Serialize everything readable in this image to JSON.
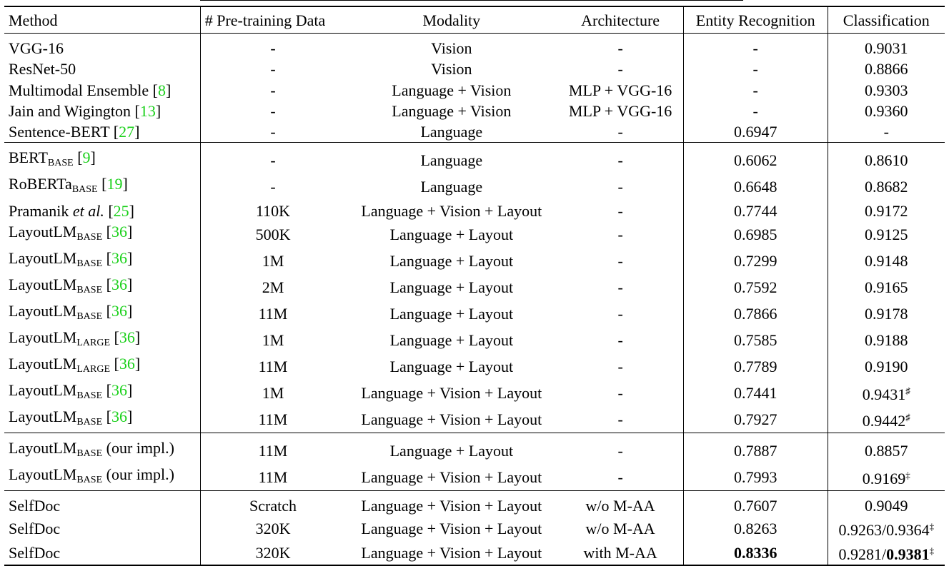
{
  "headers": [
    "Method",
    "# Pre-training Data",
    "Modality",
    "Architecture",
    "Entity Recognition",
    "Classification"
  ],
  "groups": [
    [
      {
        "m": "VGG-16",
        "ref": "",
        "data": "-",
        "mod": "Vision",
        "arch": "-",
        "er": "-",
        "cls": "0.9031"
      },
      {
        "m": "ResNet-50",
        "ref": "",
        "data": "-",
        "mod": "Vision",
        "arch": "-",
        "er": "-",
        "cls": "0.8866"
      },
      {
        "m": "Multimodal Ensemble ",
        "ref": "8",
        "data": "-",
        "mod": "Language + Vision",
        "arch": "MLP + VGG-16",
        "er": "-",
        "cls": "0.9303"
      },
      {
        "m": "Jain and Wigington ",
        "ref": "13",
        "data": "-",
        "mod": "Language + Vision",
        "arch": "MLP + VGG-16",
        "er": "-",
        "cls": "0.9360"
      },
      {
        "m": "Sentence-BERT ",
        "ref": "27",
        "data": "-",
        "mod": "Language",
        "arch": "-",
        "er": "0.6947",
        "cls": "-"
      }
    ],
    [
      {
        "m": "BERT",
        "sub": "BASE",
        "ref": "9",
        "data": "-",
        "mod": "Language",
        "arch": "-",
        "er": "0.6062",
        "cls": "0.8610"
      },
      {
        "m": "RoBERTa",
        "sub": "BASE",
        "ref": "19",
        "data": "-",
        "mod": "Language",
        "arch": "-",
        "er": "0.6648",
        "cls": "0.8682"
      },
      {
        "m": "Pramanik ",
        "it": "et al.",
        "ref": "25",
        "data": "110K",
        "mod": "Language + Vision + Layout",
        "arch": "-",
        "er": "0.7744",
        "cls": "0.9172"
      },
      {
        "m": "LayoutLM",
        "sub": "BASE",
        "ref": "36",
        "data": "500K",
        "mod": "Language + Layout",
        "arch": "-",
        "er": "0.6985",
        "cls": "0.9125"
      },
      {
        "m": "LayoutLM",
        "sub": "BASE",
        "ref": "36",
        "data": "1M",
        "mod": "Language + Layout",
        "arch": "-",
        "er": "0.7299",
        "cls": "0.9148"
      },
      {
        "m": "LayoutLM",
        "sub": "BASE",
        "ref": "36",
        "data": "2M",
        "mod": "Language + Layout",
        "arch": "-",
        "er": "0.7592",
        "cls": "0.9165"
      },
      {
        "m": "LayoutLM",
        "sub": "BASE",
        "ref": "36",
        "data": "11M",
        "mod": "Language + Layout",
        "arch": "-",
        "er": "0.7866",
        "cls": "0.9178"
      },
      {
        "m": "LayoutLM",
        "sub": "LARGE",
        "ref": "36",
        "data": "1M",
        "mod": "Language + Layout",
        "arch": "-",
        "er": "0.7585",
        "cls": "0.9188"
      },
      {
        "m": "LayoutLM",
        "sub": "LARGE",
        "ref": "36",
        "data": "11M",
        "mod": "Language + Layout",
        "arch": "-",
        "er": "0.7789",
        "cls": "0.9190"
      },
      {
        "m": "LayoutLM",
        "sub": "BASE",
        "ref": "36",
        "data": "1M",
        "mod": "Language + Vision + Layout",
        "arch": "-",
        "er": "0.7441",
        "cls": "0.9431",
        "clsSup": "♯"
      },
      {
        "m": "LayoutLM",
        "sub": "BASE",
        "ref": "36",
        "data": "11M",
        "mod": "Language + Vision + Layout",
        "arch": "-",
        "er": "0.7927",
        "cls": "0.9442",
        "clsSup": "♯"
      }
    ],
    [
      {
        "m": "LayoutLM",
        "sub": "BASE",
        "post": " (our impl.)",
        "ref": "",
        "data": "11M",
        "mod": "Language + Layout",
        "arch": "-",
        "er": "0.7887",
        "cls": "0.8857"
      },
      {
        "m": "LayoutLM",
        "sub": "BASE",
        "post": " (our impl.)",
        "ref": "",
        "data": "11M",
        "mod": "Language + Vision + Layout",
        "arch": "-",
        "er": "0.7993",
        "cls": "0.9169",
        "clsSup": "‡"
      }
    ],
    [
      {
        "m": "SelfDoc",
        "ref": "",
        "data": "Scratch",
        "mod": "Language + Vision + Layout",
        "arch": "w/o M-AA",
        "er": "0.7607",
        "cls": "0.9049"
      },
      {
        "m": "SelfDoc",
        "ref": "",
        "data": "320K",
        "mod": "Language + Vision + Layout",
        "arch": "w/o M-AA",
        "er": "0.8263",
        "cls": "0.9263/0.9364",
        "clsSup": "‡"
      },
      {
        "m": "SelfDoc",
        "ref": "",
        "data": "320K",
        "mod": "Language + Vision + Layout",
        "arch": "with M-AA",
        "er": "0.8336",
        "erBold": true,
        "cls": "0.9281/",
        "clsB": "0.9381",
        "clsSup": "‡"
      }
    ]
  ]
}
